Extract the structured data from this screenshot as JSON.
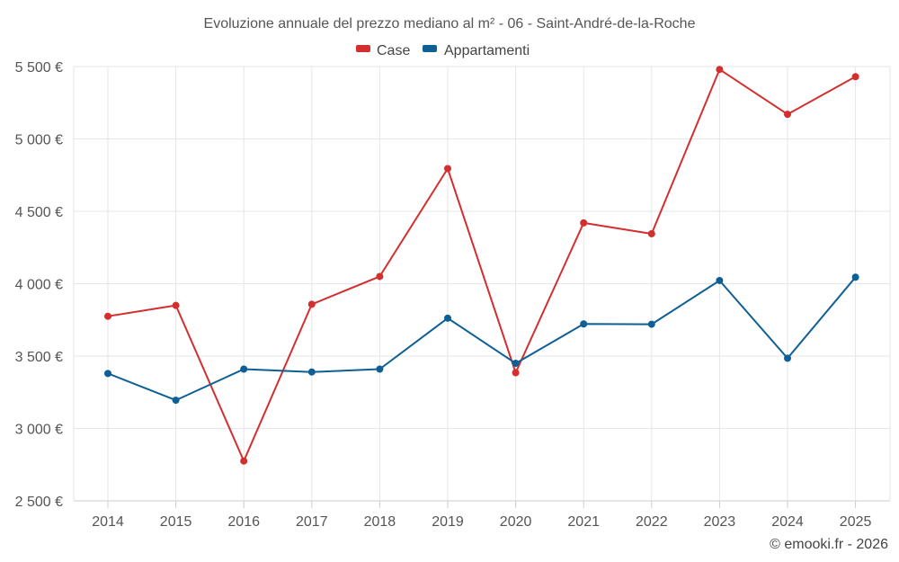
{
  "chart_data": {
    "type": "line",
    "title": "Evoluzione annuale del prezzo mediano al m² - 06 - Saint-André-de-la-Roche",
    "xlabel": "",
    "ylabel": "",
    "categories": [
      "2014",
      "2015",
      "2016",
      "2017",
      "2018",
      "2019",
      "2020",
      "2021",
      "2022",
      "2023",
      "2024",
      "2025"
    ],
    "ylim": [
      2500,
      5500
    ],
    "yticks": [
      2500,
      3000,
      3500,
      4000,
      4500,
      5000,
      5500
    ],
    "ytick_labels": [
      "2 500 €",
      "3 000 €",
      "3 500 €",
      "4 000 €",
      "4 500 €",
      "5 000 €",
      "5 500 €"
    ],
    "legend_position": "top-center",
    "grid": true,
    "series": [
      {
        "name": "Case",
        "color": "#d32f2f",
        "values": [
          3775,
          3850,
          2775,
          3858,
          4050,
          4795,
          3385,
          4420,
          4345,
          5480,
          5170,
          5430
        ]
      },
      {
        "name": "Appartamenti",
        "color": "#0d5f96",
        "values": [
          3380,
          3195,
          3410,
          3390,
          3410,
          3762,
          3450,
          3722,
          3720,
          4022,
          3485,
          4045
        ]
      }
    ]
  },
  "credit": "© emooki.fr - 2026"
}
